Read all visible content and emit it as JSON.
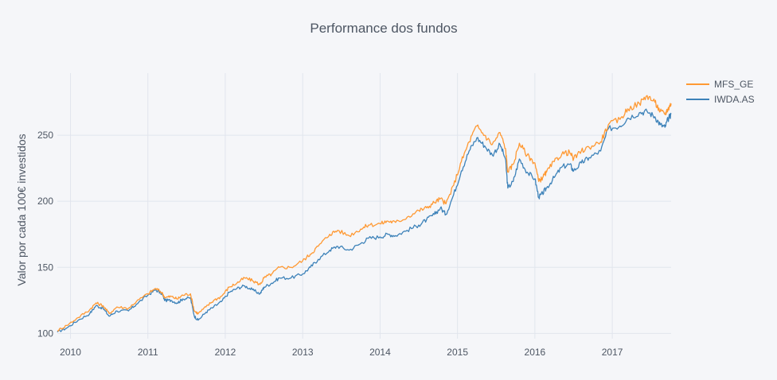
{
  "chart_data": {
    "type": "line",
    "title": "Performance dos fundos",
    "xlabel": "",
    "ylabel": "Valor por cada 100€ investidos",
    "xlim": [
      2009.83,
      2017.76
    ],
    "ylim": [
      96,
      297
    ],
    "x_ticks": [
      2010,
      2011,
      2012,
      2013,
      2014,
      2015,
      2016,
      2017
    ],
    "x_tick_labels": [
      "2010",
      "2011",
      "2012",
      "2013",
      "2014",
      "2015",
      "2016",
      "2017"
    ],
    "y_ticks": [
      100,
      150,
      200,
      250
    ],
    "y_tick_labels": [
      "100",
      "150",
      "200",
      "250"
    ],
    "grid": true,
    "legend": "top-right",
    "series": [
      {
        "name": "MFS_GE",
        "color": "#ff9933",
        "x": [
          2009.83,
          2009.95,
          2010.1,
          2010.25,
          2010.33,
          2010.42,
          2010.5,
          2010.6,
          2010.75,
          2010.85,
          2011.0,
          2011.1,
          2011.18,
          2011.22,
          2011.3,
          2011.38,
          2011.45,
          2011.55,
          2011.6,
          2011.65,
          2011.75,
          2011.85,
          2011.95,
          2012.05,
          2012.15,
          2012.25,
          2012.35,
          2012.45,
          2012.5,
          2012.6,
          2012.7,
          2012.85,
          2013.0,
          2013.1,
          2013.2,
          2013.35,
          2013.45,
          2013.6,
          2013.75,
          2013.85,
          2014.0,
          2014.1,
          2014.2,
          2014.35,
          2014.5,
          2014.6,
          2014.7,
          2014.78,
          2014.85,
          2014.95,
          2015.05,
          2015.15,
          2015.25,
          2015.35,
          2015.45,
          2015.55,
          2015.62,
          2015.65,
          2015.72,
          2015.8,
          2015.9,
          2016.0,
          2016.05,
          2016.1,
          2016.15,
          2016.25,
          2016.35,
          2016.45,
          2016.5,
          2016.6,
          2016.7,
          2016.85,
          2016.95,
          2017.1,
          2017.2,
          2017.35,
          2017.45,
          2017.55,
          2017.62,
          2017.68,
          2017.72,
          2017.76
        ],
        "values": [
          102,
          106,
          112,
          118,
          123,
          121,
          115,
          120,
          119,
          124,
          130,
          134,
          131,
          127,
          128,
          126,
          129,
          130,
          117,
          115,
          120,
          125,
          128,
          135,
          138,
          142,
          140,
          137,
          142,
          145,
          150,
          150,
          155,
          160,
          166,
          175,
          178,
          174,
          179,
          182,
          183,
          185,
          184,
          188,
          193,
          195,
          199,
          202,
          198,
          212,
          230,
          245,
          257,
          250,
          243,
          252,
          240,
          222,
          228,
          244,
          235,
          229,
          215,
          218,
          222,
          230,
          236,
          237,
          232,
          238,
          241,
          245,
          258,
          262,
          270,
          274,
          280,
          275,
          268,
          266,
          270,
          274
        ]
      },
      {
        "name": "IWDA.AS",
        "color": "#3d82b9",
        "x": [
          2009.83,
          2009.95,
          2010.1,
          2010.25,
          2010.33,
          2010.42,
          2010.5,
          2010.6,
          2010.75,
          2010.85,
          2011.0,
          2011.1,
          2011.18,
          2011.22,
          2011.3,
          2011.38,
          2011.45,
          2011.55,
          2011.6,
          2011.65,
          2011.75,
          2011.85,
          2011.95,
          2012.05,
          2012.15,
          2012.25,
          2012.35,
          2012.45,
          2012.5,
          2012.6,
          2012.7,
          2012.85,
          2013.0,
          2013.1,
          2013.2,
          2013.35,
          2013.45,
          2013.6,
          2013.75,
          2013.85,
          2014.0,
          2014.1,
          2014.2,
          2014.35,
          2014.5,
          2014.6,
          2014.7,
          2014.78,
          2014.85,
          2014.95,
          2015.05,
          2015.15,
          2015.25,
          2015.35,
          2015.45,
          2015.55,
          2015.62,
          2015.65,
          2015.72,
          2015.8,
          2015.9,
          2016.0,
          2016.05,
          2016.1,
          2016.15,
          2016.25,
          2016.35,
          2016.45,
          2016.5,
          2016.6,
          2016.7,
          2016.85,
          2016.95,
          2017.1,
          2017.2,
          2017.35,
          2017.45,
          2017.55,
          2017.62,
          2017.68,
          2017.72,
          2017.76
        ],
        "values": [
          101,
          104,
          110,
          115,
          121,
          119,
          113,
          117,
          117,
          122,
          129,
          133,
          130,
          125,
          125,
          123,
          126,
          127,
          113,
          110,
          116,
          120,
          124,
          131,
          134,
          136,
          133,
          130,
          135,
          138,
          142,
          142,
          145,
          150,
          156,
          163,
          166,
          163,
          168,
          172,
          173,
          175,
          174,
          178,
          182,
          186,
          190,
          195,
          190,
          205,
          223,
          238,
          248,
          242,
          235,
          243,
          232,
          210,
          215,
          232,
          222,
          217,
          203,
          206,
          210,
          218,
          226,
          228,
          223,
          229,
          233,
          238,
          255,
          257,
          263,
          267,
          268,
          264,
          258,
          256,
          262,
          266
        ]
      }
    ]
  }
}
